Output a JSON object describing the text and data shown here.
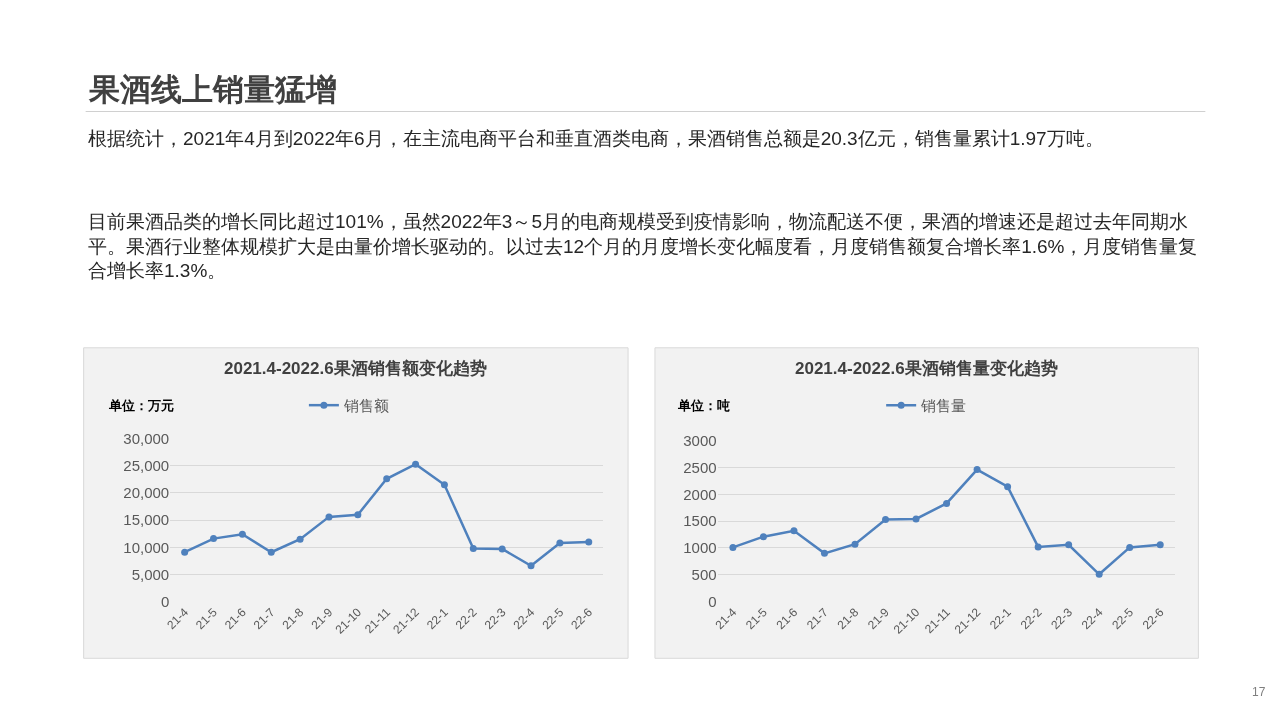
{
  "chart_data": [
    {
      "type": "other",
      "title": "果酒线上销量猛增",
      "annotations": [
        "根据统计，2021年4月到2022年6月，在主流电商平台和垂直酒类电商，果酒销售总额是20.3亿元，销售量累计1.97万吨。",
        "目前果酒品类的增长同比超过101%，虽然2022年3～5月的电商规模受到疫情影响，物流配送不便，果酒的增速还是超过去年同期水平。果酒行业整体规模扩大是由量价增长驱动的。以过去12个月的月度增长变化幅度看，月度销售额复合增长率1.6%，月度销售量复合增长率1.3%。",
        "17"
      ]
    },
    {
      "type": "line",
      "title": "2021.4-2022.6果酒销售额变化趋势",
      "annotations": [
        "单位：万元"
      ],
      "categories": [
        "21-4",
        "21-5",
        "21-6",
        "21-7",
        "21-8",
        "21-9",
        "21-10",
        "21-11",
        "21-12",
        "22-1",
        "22-2",
        "22-3",
        "22-4",
        "22-5",
        "22-6"
      ],
      "series": [
        {
          "name": "销售额",
          "color": "#4f81bd",
          "values": [
            9100,
            11600,
            12400,
            9100,
            11500,
            15600,
            16000,
            22600,
            25300,
            21500,
            9800,
            9700,
            6600,
            10800,
            11000
          ]
        }
      ],
      "ylim": [
        0,
        30000
      ],
      "yticks": [
        0,
        {
          "value": 5000,
          "label": "5,000"
        },
        {
          "value": 10000,
          "label": "10,000"
        },
        {
          "value": 15000,
          "label": "15,000"
        },
        {
          "value": 20000,
          "label": "20,000"
        },
        {
          "value": 25000,
          "label": "25,000"
        },
        {
          "value": 30000,
          "label": "30,000"
        }
      ],
      "grid": "y",
      "legend": "top",
      "marker": "circle",
      "line_style": "solid"
    },
    {
      "type": "line",
      "title": "2021.4-2022.6果酒销售量变化趋势",
      "annotations": [
        "单位：吨"
      ],
      "categories": [
        "21-4",
        "21-5",
        "21-6",
        "21-7",
        "21-8",
        "21-9",
        "21-10",
        "21-11",
        "21-12",
        "22-1",
        "22-2",
        "22-3",
        "22-4",
        "22-5",
        "22-6"
      ],
      "series": [
        {
          "name": "销售量",
          "color": "#4f81bd",
          "values": [
            1010,
            1210,
            1320,
            900,
            1070,
            1530,
            1540,
            1830,
            2460,
            2140,
            1020,
            1060,
            510,
            1010,
            1060
          ]
        }
      ],
      "ylim": [
        0,
        3000
      ],
      "yticks": [
        0,
        500,
        1000,
        1500,
        2000,
        2500,
        3000
      ],
      "grid": "y",
      "legend": "top",
      "marker": "circle",
      "line_style": "solid"
    }
  ]
}
